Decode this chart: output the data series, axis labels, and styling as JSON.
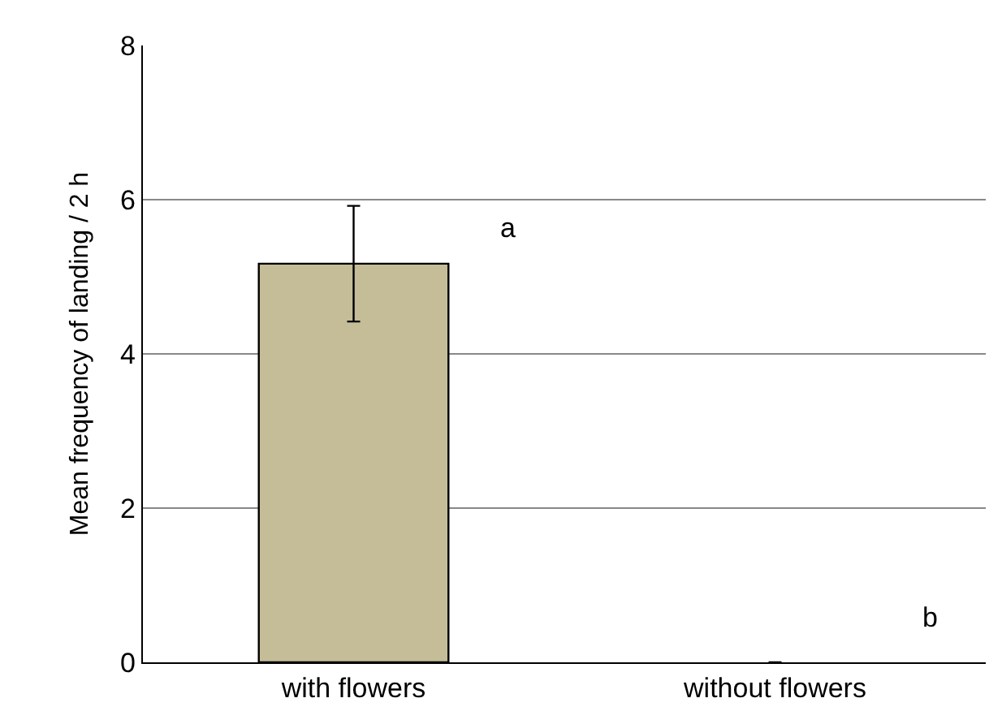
{
  "chart_data": {
    "type": "bar",
    "ylabel": "Mean frequency of landing / 2 h",
    "categories": [
      "with flowers",
      "without flowers"
    ],
    "values": [
      5.17,
      0
    ],
    "errors": [
      0.75,
      null
    ],
    "color": "#c4bd97",
    "ylim": [
      0,
      8
    ],
    "yticks": [
      0,
      2,
      4,
      6,
      8
    ],
    "grid": "y",
    "legend": false,
    "annotations": [
      "a",
      "b"
    ]
  }
}
